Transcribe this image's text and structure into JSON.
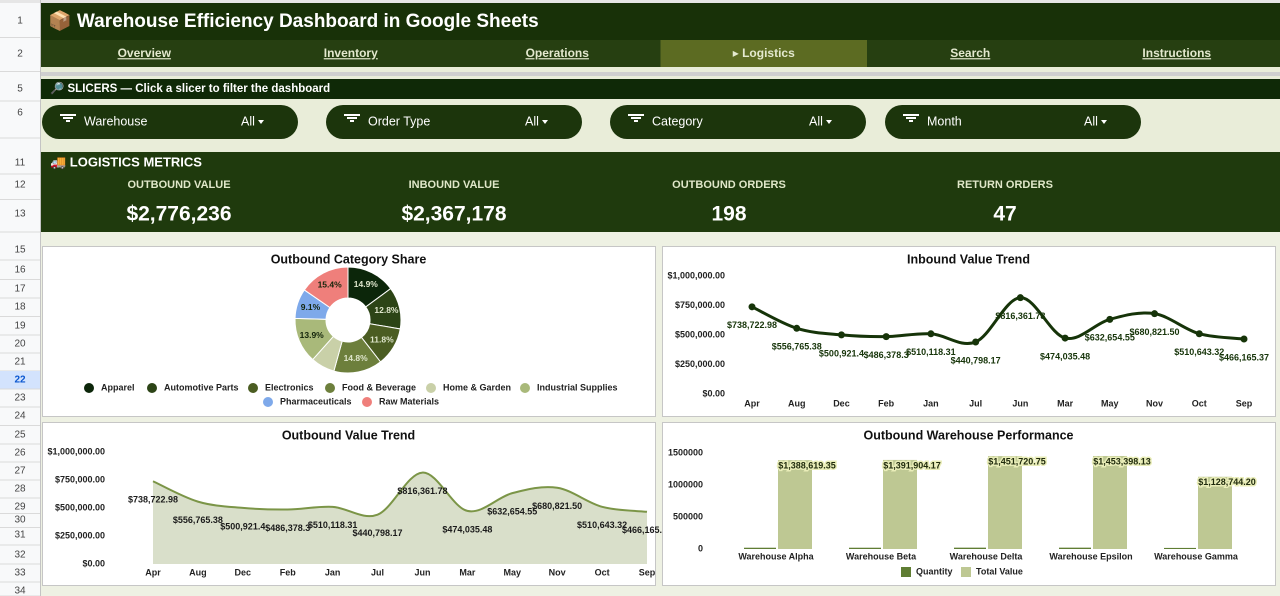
{
  "row_headers": [
    {
      "label": "1"
    },
    {
      "label": "2"
    },
    {
      "label": "5"
    },
    {
      "label": "6"
    },
    {
      "label": "11"
    },
    {
      "label": "12"
    },
    {
      "label": "13"
    },
    {
      "label": "15"
    },
    {
      "label": "16"
    },
    {
      "label": "17"
    },
    {
      "label": "18"
    },
    {
      "label": "19"
    },
    {
      "label": "20"
    },
    {
      "label": "21"
    },
    {
      "label": "22",
      "selected": true
    },
    {
      "label": "23"
    },
    {
      "label": "24"
    },
    {
      "label": "25"
    },
    {
      "label": "26"
    },
    {
      "label": "27"
    },
    {
      "label": "28"
    },
    {
      "label": "29"
    },
    {
      "label": "30"
    },
    {
      "label": "31"
    },
    {
      "label": "32"
    },
    {
      "label": "33"
    },
    {
      "label": "34"
    }
  ],
  "header": {
    "title": "📦 Warehouse Efficiency Dashboard in Google Sheets"
  },
  "nav": [
    {
      "label": "Overview"
    },
    {
      "label": "Inventory"
    },
    {
      "label": "Operations"
    },
    {
      "label": "▸ Logistics",
      "active": true
    },
    {
      "label": "Search"
    },
    {
      "label": "Instructions"
    }
  ],
  "slicers": {
    "banner": "🔎 SLICERS — Click a slicer to filter the dashboard",
    "items": [
      {
        "label": "Warehouse",
        "value": "All"
      },
      {
        "label": "Order Type",
        "value": "All"
      },
      {
        "label": "Category",
        "value": "All"
      },
      {
        "label": "Month",
        "value": "All"
      }
    ]
  },
  "metrics": {
    "title": "🚚 LOGISTICS METRICS",
    "items": [
      {
        "label": "OUTBOUND VALUE",
        "value": "$2,776,236"
      },
      {
        "label": "INBOUND VALUE",
        "value": "$2,367,178"
      },
      {
        "label": "OUTBOUND ORDERS",
        "value": "198"
      },
      {
        "label": "RETURN ORDERS",
        "value": "47"
      }
    ]
  },
  "chart_data": [
    {
      "type": "pie",
      "title": "Outbound Category Share",
      "categories": [
        "Apparel",
        "Automotive Parts",
        "Electronics",
        "Food & Beverage",
        "Home & Garden",
        "Industrial Supplies",
        "Pharmaceuticals",
        "Raw Materials"
      ],
      "values": [
        14.9,
        12.8,
        11.8,
        14.8,
        7.3,
        13.9,
        9.1,
        15.4
      ],
      "value_labels": [
        "14.9%",
        "12.8%",
        "11.8%",
        "14.8%",
        null,
        "13.9%",
        "9.1%",
        "15.4%"
      ],
      "colors": [
        "#0c260a",
        "#2c4416",
        "#4b5d22",
        "#6d7f3c",
        "#c9d0a8",
        "#a9b97a",
        "#7ea9ea",
        "#ef7f7b"
      ]
    },
    {
      "type": "line",
      "title": "Inbound Value Trend",
      "color": "#163409",
      "categories": [
        "Apr",
        "Aug",
        "Dec",
        "Feb",
        "Jan",
        "Jul",
        "Jun",
        "Mar",
        "May",
        "Nov",
        "Oct",
        "Sep"
      ],
      "values": [
        738722.98,
        556765.38,
        500921.4,
        486378.3,
        510118.31,
        440798.17,
        816361.78,
        474035.48,
        632654.55,
        680821.5,
        510643.32,
        466165.37
      ],
      "value_labels": [
        "$738,722.98",
        "$556,765.38",
        "$500,921.4",
        "$486,378.3",
        "$510,118.31",
        "$440,798.17",
        "$816,361.78",
        "$474,035.48",
        "$632,654.55",
        "$680,821.50",
        "$510,643.32",
        "$466,165.37"
      ],
      "ylim": [
        0,
        1000000
      ],
      "yticks": [
        {
          "value": 0,
          "label": "$0.00"
        },
        {
          "value": 250000,
          "label": "$250,000.00"
        },
        {
          "value": 500000,
          "label": "$500,000.00"
        },
        {
          "value": 750000,
          "label": "$750,000.00"
        },
        {
          "value": 1000000,
          "label": "$1,000,000.00"
        }
      ]
    },
    {
      "type": "area",
      "title": "Outbound Value Trend",
      "color": "#7b9547",
      "fill": "#d9dfca",
      "categories": [
        "Apr",
        "Aug",
        "Dec",
        "Feb",
        "Jan",
        "Jul",
        "Jun",
        "Mar",
        "May",
        "Nov",
        "Oct",
        "Sep"
      ],
      "values": [
        738722.98,
        556765.38,
        500921.4,
        486378.3,
        510118.31,
        440798.17,
        816361.78,
        474035.48,
        632654.55,
        680821.5,
        510643.32,
        466165.37
      ],
      "value_labels": [
        "$738,722.98",
        "$556,765.38",
        "$500,921.4",
        "$486,378.3",
        "$510,118.31",
        "$440,798.17",
        "$816,361.78",
        "$474,035.48",
        "$632,654.55",
        "$680,821.50",
        "$510,643.32",
        "$466,165.37"
      ],
      "ylim": [
        0,
        1000000
      ],
      "yticks": [
        {
          "value": 0,
          "label": "$0.00"
        },
        {
          "value": 250000,
          "label": "$250,000.00"
        },
        {
          "value": 500000,
          "label": "$500,000.00"
        },
        {
          "value": 750000,
          "label": "$750,000.00"
        },
        {
          "value": 1000000,
          "label": "$1,000,000.00"
        }
      ]
    },
    {
      "type": "bar",
      "title": "Outbound Warehouse Performance",
      "categories": [
        "Warehouse Alpha",
        "Warehouse Beta",
        "Warehouse Delta",
        "Warehouse Epsilon",
        "Warehouse Gamma"
      ],
      "series": [
        {
          "name": "Quantity",
          "color": "#5f7d33",
          "values": [
            20000,
            20000,
            21000,
            21000,
            17000
          ]
        },
        {
          "name": "Total Value",
          "color": "#bec893",
          "values": [
            1388619.35,
            1391904.17,
            1451720.75,
            1453398.13,
            1128744.2
          ],
          "value_labels": [
            "$1,388,619.35",
            "$1,391,904.17",
            "$1,451,720.75",
            "$1,453,398.13",
            "$1,128,744.20"
          ]
        }
      ],
      "ylim": [
        0,
        1500000
      ],
      "yticks": [
        0,
        500000,
        1000000,
        1500000
      ]
    }
  ]
}
